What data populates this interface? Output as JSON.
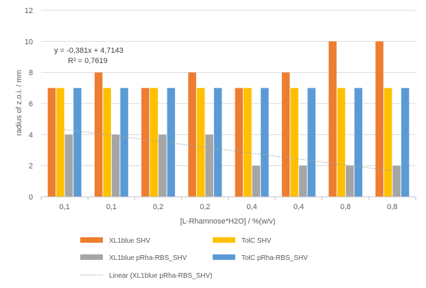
{
  "chart_data": {
    "type": "bar",
    "categories": [
      "0,1",
      "0,1",
      "0,2",
      "0,2",
      "0,4",
      "0,4",
      "0,8",
      "0,8"
    ],
    "series": [
      {
        "name": "XL1blue SHV",
        "color": "#ED7D31",
        "values": [
          7,
          8,
          7,
          8,
          7,
          8,
          10,
          10
        ]
      },
      {
        "name": "TolC SHV",
        "color": "#FFC000",
        "values": [
          7,
          7,
          7,
          7,
          7,
          7,
          7,
          7
        ]
      },
      {
        "name": "XL1blue pRha-RBS_SHV",
        "color": "#A5A5A5",
        "values": [
          4,
          4,
          4,
          4,
          2,
          2,
          2,
          2
        ]
      },
      {
        "name": "TolC pRha-RBS_SHV",
        "color": "#5B9BD5",
        "values": [
          7,
          7,
          7,
          7,
          7,
          7,
          7,
          7
        ]
      }
    ],
    "trendline": {
      "name": "Linear (XL1blue pRha-RBS_SHV)",
      "color": "#A5A5A5",
      "slope": -0.381,
      "intercept": 4.7143,
      "equation": "y = -0,381x + 4,7143",
      "r_squared": "R² = 0,7619"
    },
    "xlabel": "[L-Rhamnose*H2O]  / %(w/v)",
    "ylabel": "radius of z.o.i. / mm",
    "ylim": [
      0,
      12
    ],
    "yticks": [
      0,
      2,
      4,
      6,
      8,
      10,
      12
    ],
    "grid": true,
    "legend_position": "bottom"
  }
}
